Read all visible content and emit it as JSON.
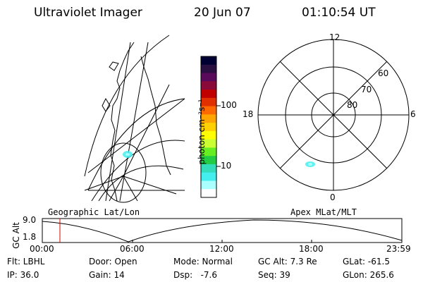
{
  "header": {
    "title": "Ultraviolet Imager",
    "date": "20 Jun 07",
    "time": "01:10:54 UT"
  },
  "colorbar": {
    "unit_label": "photon cm⁻²s⁻¹",
    "ticks": [
      "100",
      "10"
    ],
    "colors": [
      "#000033",
      "#2a1040",
      "#5a0a5a",
      "#8a0a3a",
      "#c00000",
      "#e03000",
      "#ff6a00",
      "#ffa500",
      "#ffd000",
      "#ffff00",
      "#ccff33",
      "#66ee22",
      "#22cc44",
      "#33ddbb",
      "#44eeee",
      "#aaffff",
      "#ffffff"
    ]
  },
  "polar": {
    "mlt_labels": {
      "top": "12",
      "left": "18",
      "right": "6",
      "bottom": "0"
    },
    "lat_labels": [
      "60",
      "70",
      "80"
    ]
  },
  "timeline": {
    "ylabel": "GC Alt",
    "yticks": [
      "9.0",
      "1.8"
    ],
    "left_title": "Geographic Lat/Lon",
    "right_title": "Apex MLat/MLT",
    "xticks": [
      "00:00",
      "06:00",
      "12:00",
      "18:00",
      "23:59"
    ],
    "marker_fraction": 0.049
  },
  "status": {
    "flt": "Flt: LBHL",
    "ip": "IP: 36.0",
    "door": "Door: Open",
    "gain": "Gain: 14",
    "mode": "Mode: Normal",
    "dsp": "Dsp:   -7.6",
    "gcalt": "GC Alt: 7.3 Re",
    "seq": "Seq: 39",
    "glat": "GLat: -61.5",
    "glon": "GLon: 265.6"
  }
}
